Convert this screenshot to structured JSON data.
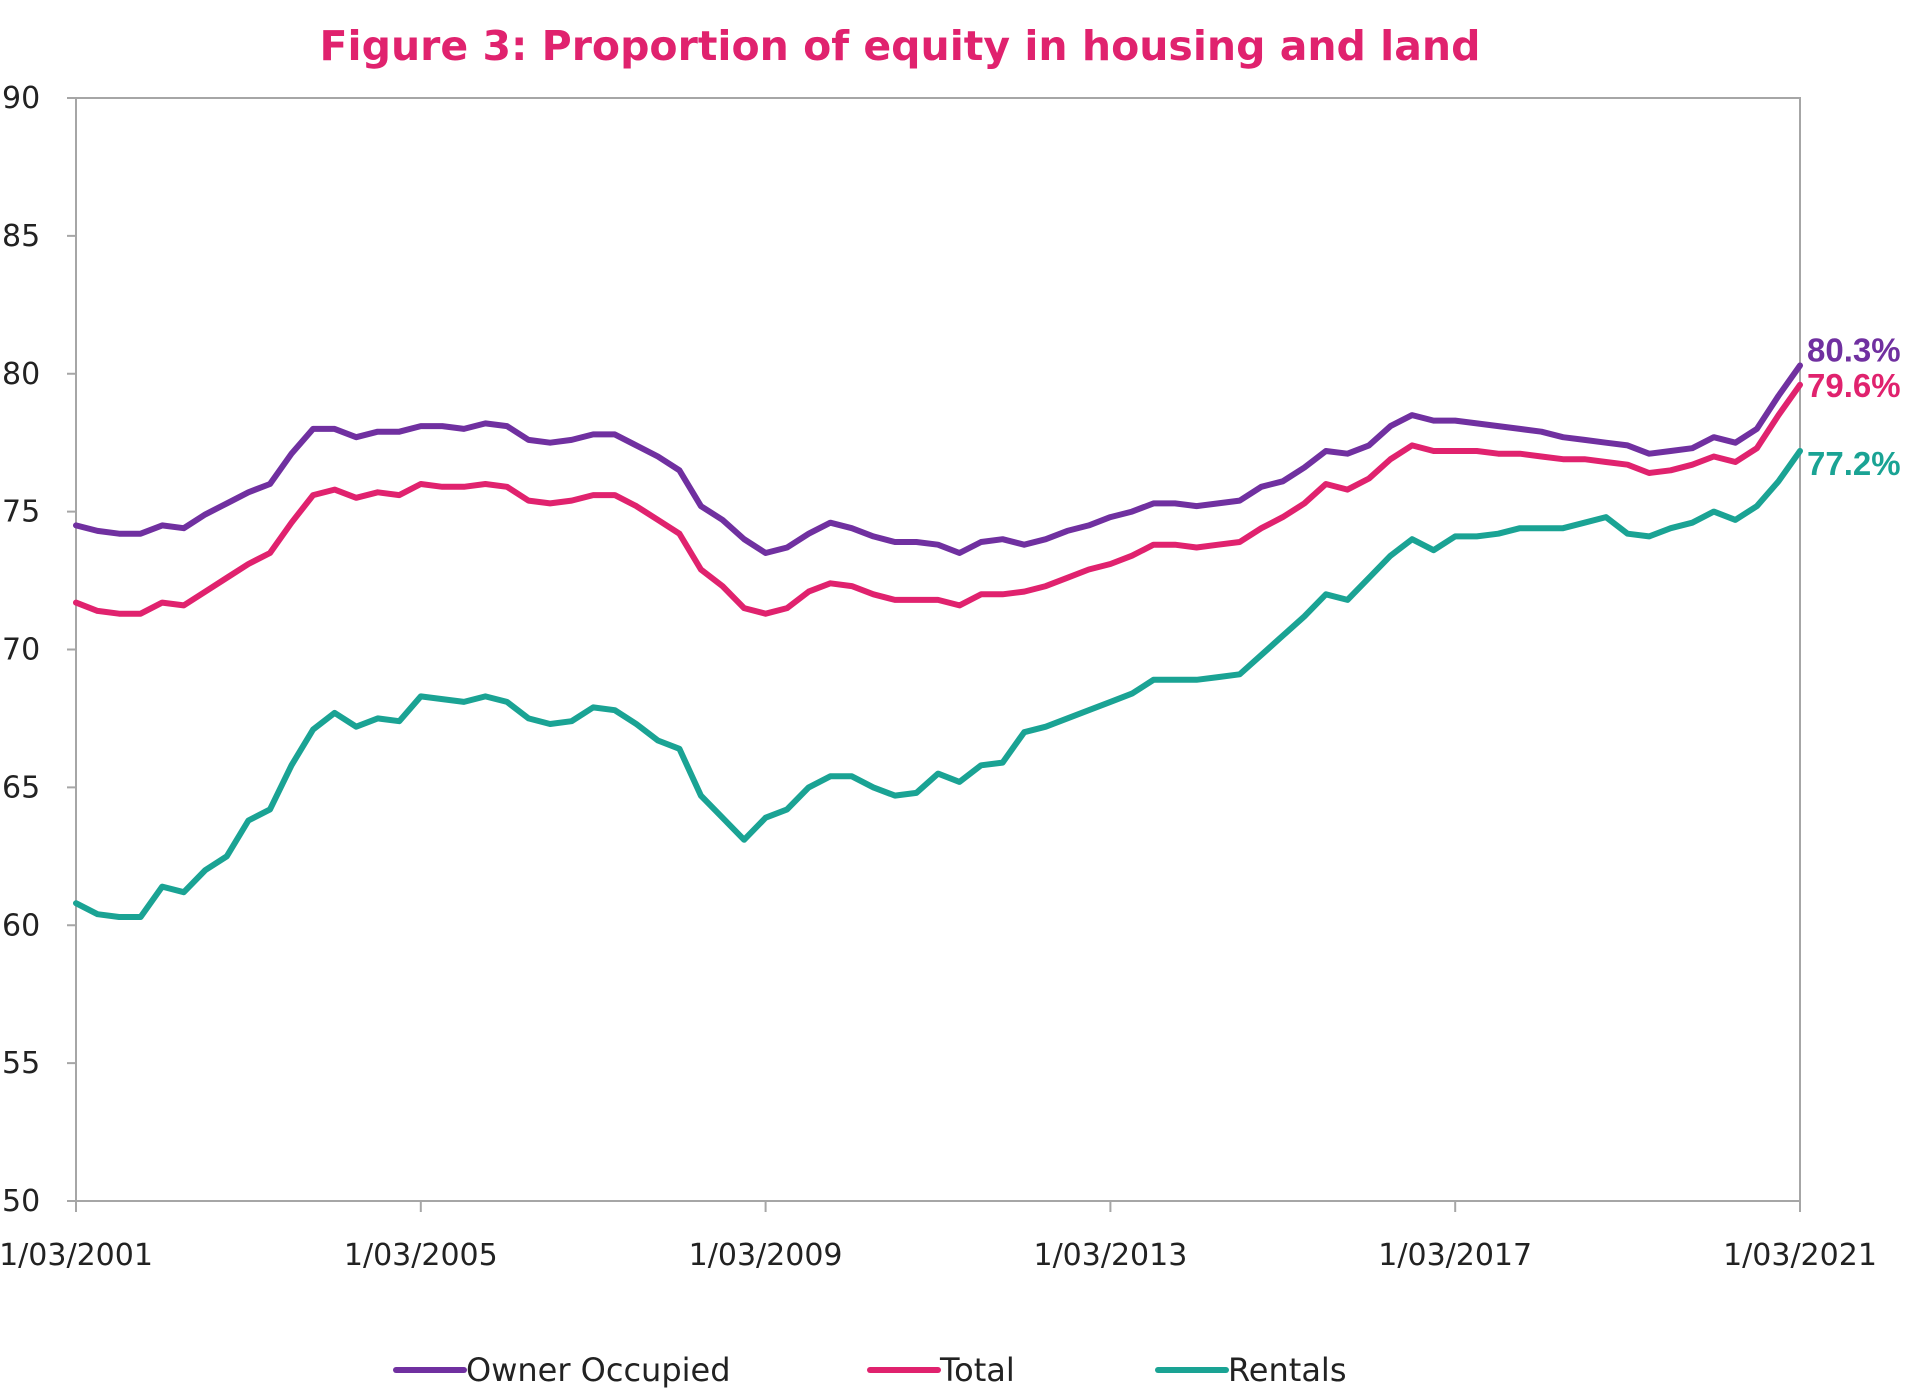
{
  "chart_data": {
    "type": "line",
    "title": "Figure 3: Proportion of equity in housing and land",
    "xlabel": "",
    "ylabel": "",
    "ylim": [
      50,
      90
    ],
    "yticks": [
      50,
      55,
      60,
      65,
      70,
      75,
      80,
      85,
      90
    ],
    "x_tick_labels": [
      "1/03/2001",
      "1/03/2005",
      "1/03/2009",
      "1/03/2013",
      "1/03/2017",
      "1/03/2021"
    ],
    "x_start": "2001-03",
    "x_end": "2021-03",
    "frequency": "quarterly",
    "grid": false,
    "legend_position": "bottom",
    "series": [
      {
        "name": "Owner Occupied",
        "color": "#7030a0",
        "end_label": "80.3%",
        "values": [
          74.5,
          74.3,
          74.2,
          74.2,
          74.5,
          74.4,
          74.9,
          75.3,
          75.7,
          76.0,
          77.1,
          78.0,
          78.0,
          77.7,
          77.9,
          77.9,
          78.1,
          78.1,
          78.0,
          78.2,
          78.1,
          77.6,
          77.5,
          77.6,
          77.8,
          77.8,
          77.4,
          77.0,
          76.5,
          75.2,
          74.7,
          74.0,
          73.5,
          73.7,
          74.2,
          74.6,
          74.4,
          74.1,
          73.9,
          73.9,
          73.8,
          73.5,
          73.9,
          74.0,
          73.8,
          74.0,
          74.3,
          74.5,
          74.8,
          75.0,
          75.3,
          75.3,
          75.2,
          75.3,
          75.4,
          75.9,
          76.1,
          76.6,
          77.2,
          77.1,
          77.4,
          78.1,
          78.5,
          78.3,
          78.3,
          78.2,
          78.1,
          78.0,
          77.9,
          77.7,
          77.6,
          77.5,
          77.4,
          77.1,
          77.2,
          77.3,
          77.7,
          77.5,
          78.0,
          79.2,
          80.3
        ]
      },
      {
        "name": "Total",
        "color": "#e0226e",
        "end_label": "79.6%",
        "values": [
          71.7,
          71.4,
          71.3,
          71.3,
          71.7,
          71.6,
          72.1,
          72.6,
          73.1,
          73.5,
          74.6,
          75.6,
          75.8,
          75.5,
          75.7,
          75.6,
          76.0,
          75.9,
          75.9,
          76.0,
          75.9,
          75.4,
          75.3,
          75.4,
          75.6,
          75.6,
          75.2,
          74.7,
          74.2,
          72.9,
          72.3,
          71.5,
          71.3,
          71.5,
          72.1,
          72.4,
          72.3,
          72.0,
          71.8,
          71.8,
          71.8,
          71.6,
          72.0,
          72.0,
          72.1,
          72.3,
          72.6,
          72.9,
          73.1,
          73.4,
          73.8,
          73.8,
          73.7,
          73.8,
          73.9,
          74.4,
          74.8,
          75.3,
          76.0,
          75.8,
          76.2,
          76.9,
          77.4,
          77.2,
          77.2,
          77.2,
          77.1,
          77.1,
          77.0,
          76.9,
          76.9,
          76.8,
          76.7,
          76.4,
          76.5,
          76.7,
          77.0,
          76.8,
          77.3,
          78.5,
          79.6
        ]
      },
      {
        "name": "Rentals",
        "color": "#1aa394",
        "end_label": "77.2%",
        "values": [
          60.8,
          60.4,
          60.3,
          60.3,
          61.4,
          61.2,
          62.0,
          62.5,
          63.8,
          64.2,
          65.8,
          67.1,
          67.7,
          67.2,
          67.5,
          67.4,
          68.3,
          68.2,
          68.1,
          68.3,
          68.1,
          67.5,
          67.3,
          67.4,
          67.9,
          67.8,
          67.3,
          66.7,
          66.4,
          64.7,
          63.9,
          63.1,
          63.9,
          64.2,
          65.0,
          65.4,
          65.4,
          65.0,
          64.7,
          64.8,
          65.5,
          65.2,
          65.8,
          65.9,
          67.0,
          67.2,
          67.5,
          67.8,
          68.1,
          68.4,
          68.9,
          68.9,
          68.9,
          69.0,
          69.1,
          69.8,
          70.5,
          71.2,
          72.0,
          71.8,
          72.6,
          73.4,
          74.0,
          73.6,
          74.1,
          74.1,
          74.2,
          74.4,
          74.4,
          74.4,
          74.6,
          74.8,
          74.2,
          74.1,
          74.4,
          74.6,
          75.0,
          74.7,
          75.2,
          76.1,
          77.2
        ]
      }
    ]
  }
}
